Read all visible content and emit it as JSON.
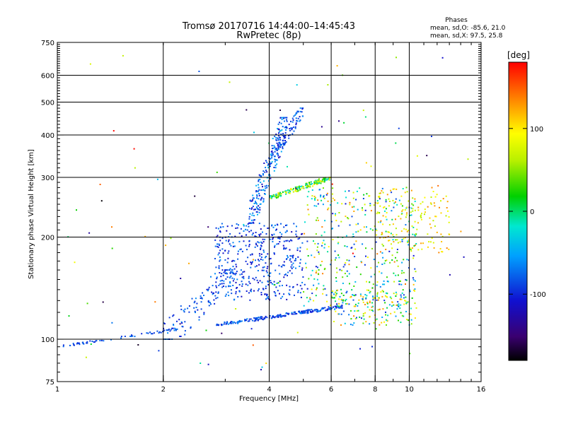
{
  "chart_data": {
    "type": "scatter",
    "title": "Tromsø 20170716 14:44:00–14:45:43",
    "subtitle": "RwPretec (8p)",
    "stats_header": "Phases",
    "stats_lines": [
      "mean, sd,O: -85.6, 21.0",
      "mean, sd,X:  97.5, 25.8"
    ],
    "xlabel": "Frequency [MHz]",
    "ylabel": "Stationary phase Virtual Height [km]",
    "x_scale": "log",
    "y_scale": "log",
    "xlim": [
      1,
      16
    ],
    "ylim": [
      75,
      750
    ],
    "x_ticks": [
      1,
      2,
      4,
      6,
      8,
      10,
      16
    ],
    "x_tick_labels": [
      "1",
      "2",
      "4",
      "6",
      "8",
      "10",
      "16"
    ],
    "y_ticks": [
      75,
      100,
      200,
      300,
      400,
      500,
      600,
      750
    ],
    "y_tick_labels": [
      "75",
      "100",
      "200",
      "300",
      "400",
      "500",
      "600",
      "750"
    ],
    "x_gridlines": [
      2,
      4,
      6,
      8,
      10
    ],
    "y_gridlines": [
      100,
      200,
      300,
      400,
      500,
      600
    ],
    "grid": true,
    "colorbar": {
      "label": "[deg]",
      "ticks": [
        100,
        0,
        -100
      ],
      "tick_labels": [
        "100",
        "0",
        "-100"
      ],
      "range": [
        -180,
        180
      ],
      "colormap": "rainbow"
    },
    "point_clusters": [
      {
        "name": "ground-trace",
        "x": [
          1.0,
          2.2
        ],
        "y": [
          95,
          107
        ],
        "n": 60,
        "spread": 0.02,
        "phase": [
          -100,
          -70
        ]
      },
      {
        "name": "low-ramp",
        "x": [
          2.0,
          3.2
        ],
        "y": [
          100,
          160
        ],
        "n": 120,
        "spread": 0.08,
        "phase": [
          -110,
          -60
        ]
      },
      {
        "name": "E-layer",
        "x": [
          2.8,
          6.5
        ],
        "y": [
          110,
          125
        ],
        "n": 220,
        "spread": 0.03,
        "phase": [
          -110,
          -60
        ]
      },
      {
        "name": "mid-cloud",
        "x": [
          2.8,
          5.0
        ],
        "y": [
          130,
          220
        ],
        "n": 420,
        "spread": 0.0,
        "phase": [
          -120,
          -60
        ]
      },
      {
        "name": "F-rise",
        "x": [
          3.5,
          4.5
        ],
        "y": [
          220,
          450
        ],
        "n": 220,
        "spread": 0.06,
        "phase": [
          -120,
          -40
        ]
      },
      {
        "name": "F2-band",
        "x": [
          4.0,
          6.0
        ],
        "y": [
          260,
          300
        ],
        "n": 180,
        "spread": 0.04,
        "phase": [
          -40,
          110
        ]
      },
      {
        "name": "upper-cluster",
        "x": [
          4.0,
          5.0
        ],
        "y": [
          330,
          480
        ],
        "n": 90,
        "spread": 0.05,
        "phase": [
          -110,
          -60
        ]
      },
      {
        "name": "mid-high-freq",
        "x": [
          5.0,
          10.5
        ],
        "y": [
          125,
          280
        ],
        "n": 420,
        "spread": 0.0,
        "phase": [
          -110,
          140
        ]
      },
      {
        "name": "low-high-freq",
        "x": [
          6.0,
          10.5
        ],
        "y": [
          110,
          140
        ],
        "n": 160,
        "spread": 0.0,
        "phase": [
          -100,
          140
        ]
      },
      {
        "name": "X-mode",
        "x": [
          8.0,
          13.0
        ],
        "y": [
          180,
          280
        ],
        "n": 140,
        "spread": 0.0,
        "phase": [
          60,
          140
        ]
      },
      {
        "name": "sparse",
        "x": [
          1.0,
          15.0
        ],
        "y": [
          80,
          700
        ],
        "n": 90,
        "spread": 0.0,
        "phase": [
          -180,
          180
        ]
      }
    ]
  }
}
